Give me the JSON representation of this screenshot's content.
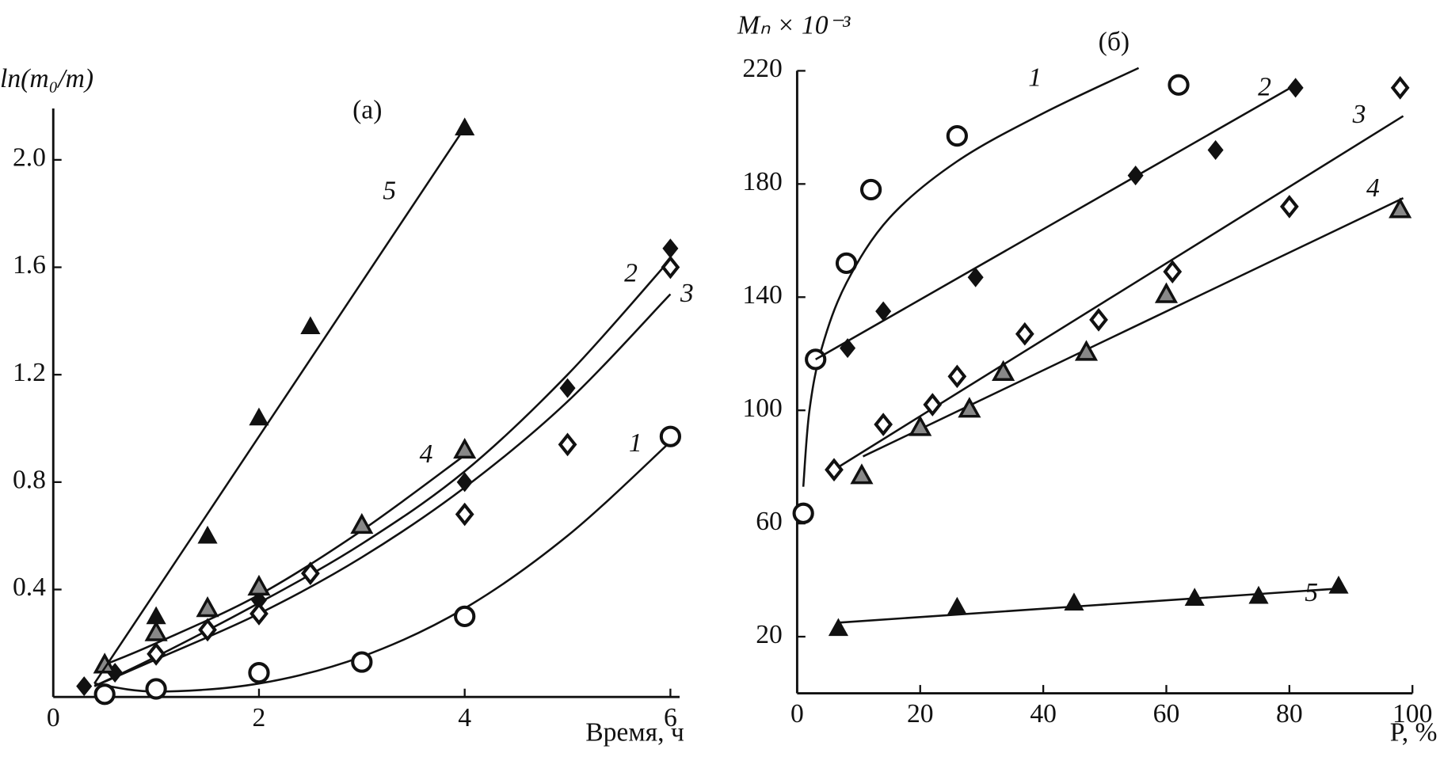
{
  "chart_data": [
    {
      "type": "scatter",
      "title": "(а)",
      "x_label": "Время, ч",
      "y_label": "ln(m₀/m)",
      "xlim": [
        0,
        6
      ],
      "ylim": [
        0,
        2.2
      ],
      "xticks": [
        0,
        2,
        4,
        6
      ],
      "yticks": [
        0.4,
        0.8,
        1.2,
        1.6,
        {
          "value": 2,
          "label": "2.0"
        }
      ],
      "grid": false,
      "series": [
        {
          "name": "1",
          "marker": "circle",
          "color": "#111111",
          "x": [
            0.5,
            1,
            2,
            3,
            4,
            6
          ],
          "values": [
            0.01,
            0.03,
            0.09,
            0.13,
            0.3,
            0.97
          ],
          "fit_x": [
            0.4,
            1,
            2,
            3,
            4,
            5,
            6
          ],
          "fit_y": [
            0.05,
            0.02,
            0.05,
            0.15,
            0.33,
            0.6,
            0.95
          ]
        },
        {
          "name": "2",
          "marker": "diamond-filled",
          "color": "#111111",
          "x": [
            0.3,
            0.6,
            2,
            4,
            5,
            6
          ],
          "values": [
            0.04,
            0.09,
            0.36,
            0.8,
            1.15,
            1.67
          ],
          "fit_x": [
            0.4,
            1,
            2,
            3,
            4,
            5,
            6
          ],
          "fit_y": [
            0.04,
            0.15,
            0.35,
            0.57,
            0.84,
            1.2,
            1.63
          ]
        },
        {
          "name": "3",
          "marker": "diamond",
          "color": "#111111",
          "x": [
            1,
            1.5,
            2,
            2.5,
            4,
            5,
            6
          ],
          "values": [
            0.16,
            0.25,
            0.31,
            0.46,
            0.68,
            0.94,
            1.6
          ],
          "fit_x": [
            0.4,
            1,
            2,
            3,
            4,
            5,
            6
          ],
          "fit_y": [
            0.04,
            0.14,
            0.31,
            0.52,
            0.78,
            1.1,
            1.5
          ]
        },
        {
          "name": "4",
          "marker": "triangle",
          "color": "#888888",
          "x": [
            0.5,
            1,
            1.5,
            2,
            3,
            4
          ],
          "values": [
            0.12,
            0.24,
            0.33,
            0.41,
            0.64,
            0.92
          ],
          "fit_x": [
            0.5,
            1,
            2,
            3,
            4
          ],
          "fit_y": [
            0.12,
            0.2,
            0.38,
            0.62,
            0.9
          ]
        },
        {
          "name": "5",
          "marker": "triangle-filled",
          "color": "#111111",
          "x": [
            1,
            1.5,
            2,
            2.5,
            4
          ],
          "values": [
            0.3,
            0.6,
            1.04,
            1.38,
            2.12
          ],
          "fit_x": [
            0.4,
            4
          ],
          "fit_y": [
            0.05,
            2.12
          ]
        }
      ]
    },
    {
      "type": "scatter",
      "title": "(б)",
      "x_label": "P, %",
      "y_label": "Mₙ × 10⁻³",
      "xlim": [
        0,
        100
      ],
      "ylim": [
        0,
        220
      ],
      "xticks": [
        0,
        20,
        40,
        60,
        80,
        100
      ],
      "yticks": [
        20,
        60,
        100,
        140,
        180,
        220
      ],
      "grid": false,
      "series": [
        {
          "name": "1",
          "marker": "circle",
          "color": "#111111",
          "x": [
            1,
            3,
            8,
            12,
            26,
            62
          ],
          "values": [
            63.6,
            118,
            152,
            178,
            197,
            215
          ],
          "fit_x": [
            1,
            2,
            4,
            8,
            15,
            26,
            40,
            55.5
          ],
          "fit_y": [
            73,
            100,
            122,
            145,
            168,
            188,
            205,
            221
          ]
        },
        {
          "name": "2",
          "marker": "diamond-filled",
          "color": "#111111",
          "x": [
            8.2,
            14,
            29,
            55,
            68,
            81
          ],
          "values": [
            122,
            135,
            147,
            183,
            192,
            214
          ],
          "fit_x": [
            3,
            81
          ],
          "fit_y": [
            118,
            215
          ]
        },
        {
          "name": "3",
          "marker": "diamond",
          "color": "#111111",
          "x": [
            6,
            14,
            22,
            26,
            37,
            49,
            61,
            80,
            98
          ],
          "values": [
            79,
            95,
            102,
            112,
            127,
            132,
            149,
            172,
            214
          ],
          "fit_x": [
            6,
            98.5
          ],
          "fit_y": [
            79,
            204
          ]
        },
        {
          "name": "4",
          "marker": "triangle",
          "color": "#888888",
          "x": [
            10.5,
            20,
            28,
            33.5,
            47,
            60,
            98
          ],
          "values": [
            77,
            94,
            100.5,
            113.5,
            120.6,
            141,
            171
          ],
          "fit_x": [
            10.7,
            98.5
          ],
          "fit_y": [
            83.7,
            175
          ]
        },
        {
          "name": "5",
          "marker": "triangle-filled",
          "color": "#111111",
          "x": [
            6.7,
            26,
            45,
            64.6,
            75,
            88
          ],
          "values": [
            23,
            30.5,
            32,
            33.7,
            34.4,
            38
          ],
          "fit_x": [
            7,
            88
          ],
          "fit_y": [
            25,
            37
          ]
        }
      ]
    }
  ]
}
